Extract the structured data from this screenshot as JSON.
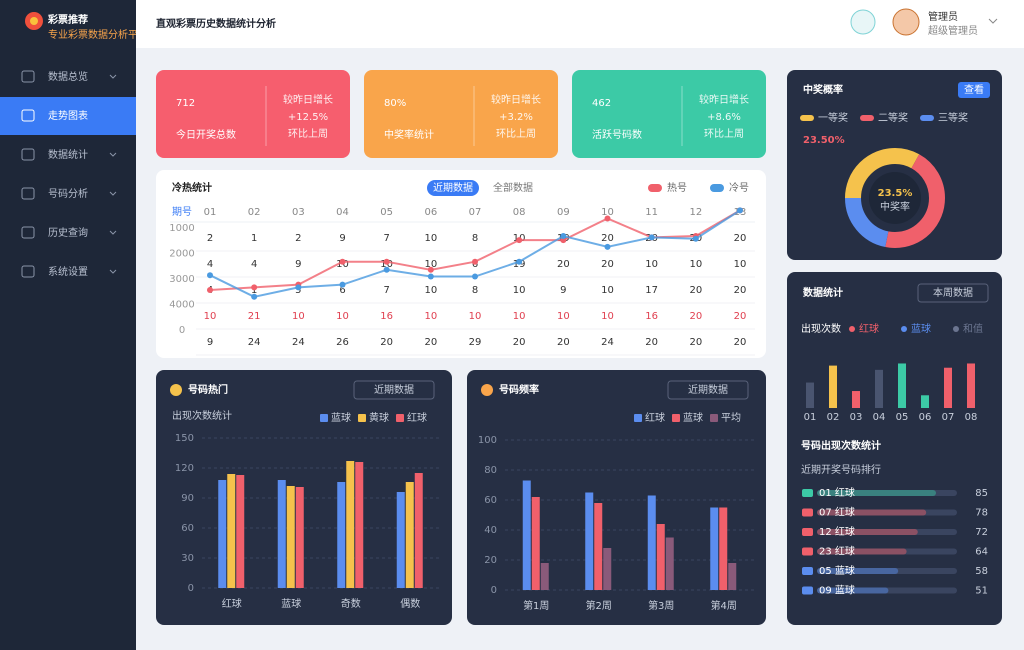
{
  "header": {
    "logo": "彩票推荐",
    "logo_sub": "专业彩票数据分析平台",
    "title": "直观彩票历史数据统计分析",
    "user_name": "管理员",
    "user_role": "超级管理员"
  },
  "sidebar": {
    "items": [
      "数据总览",
      "走势图表",
      "数据统计",
      "号码分析",
      "历史查询",
      "系统设置"
    ],
    "active": 1
  },
  "kpis": [
    {
      "value": "712",
      "label": "今日开奖总数",
      "lines": [
        "较昨日增长",
        "+12.5%",
        "环比上周"
      ],
      "color": "#f65e6e"
    },
    {
      "value": "80%",
      "label": "中奖率统计",
      "lines": [
        "较昨日增长",
        "+3.2%",
        "环比上周"
      ],
      "color": "#f9a54b"
    },
    {
      "value": "462",
      "label": "活跃号码数",
      "lines": [
        "较昨日增长",
        "+8.6%",
        "环比上周"
      ],
      "color": "#3ccaa6"
    }
  ],
  "trend": {
    "title": "冷热统计",
    "tabs": [
      "近期数据",
      "全部数据"
    ],
    "active_tab": 0,
    "columns": [
      "期号",
      "01",
      "02",
      "03",
      "04",
      "05",
      "06",
      "07",
      "08",
      "09",
      "10",
      "11",
      "12",
      "13"
    ],
    "row_labels": [
      "1000",
      "2000",
      "3000",
      "4000",
      "0"
    ],
    "rows": [
      [
        2,
        1,
        2,
        9,
        7,
        10,
        8,
        10,
        19,
        20,
        20,
        20,
        20
      ],
      [
        4,
        4,
        9,
        10,
        10,
        10,
        6,
        19,
        20,
        20,
        10,
        10,
        10
      ],
      [
        4,
        1,
        5,
        6,
        7,
        10,
        8,
        10,
        9,
        10,
        17,
        20,
        20
      ],
      [
        10,
        21,
        10,
        10,
        16,
        10,
        10,
        10,
        10,
        10,
        16,
        20,
        20
      ],
      [
        9,
        24,
        24,
        26,
        20,
        20,
        29,
        20,
        20,
        24,
        20,
        20,
        20
      ]
    ],
    "highlight_row": 3,
    "ylim": [
      0,
      100
    ],
    "series": [
      {
        "name": "热号",
        "color": "#f0606b",
        "values": [
          37,
          39,
          41,
          58,
          58,
          52,
          58,
          74,
          74,
          90,
          76,
          77,
          96
        ]
      },
      {
        "name": "冷号",
        "color": "#4a9ae0",
        "values": [
          48,
          32,
          39,
          41,
          52,
          47,
          47,
          58,
          77,
          69,
          76,
          75,
          96
        ]
      }
    ]
  },
  "prize": {
    "title": "中奖概率",
    "button": "查看",
    "summary": "23.50%",
    "center_value": "23.5%",
    "center_label": "中奖率",
    "segments": [
      {
        "name": "一等奖",
        "value": 33,
        "color": "#f5c24c"
      },
      {
        "name": "二等奖",
        "value": 45,
        "color": "#f0606b"
      },
      {
        "name": "三等奖",
        "value": 22,
        "color": "#5b8def"
      }
    ]
  },
  "stats": {
    "title": "数据统计",
    "filter": "本周数据",
    "legend_title": "出现次数",
    "legend": [
      {
        "label": "红球",
        "color": "#f0606b"
      },
      {
        "label": "蓝球",
        "color": "#5b8def"
      },
      {
        "label": "和值",
        "color": "#6b7590"
      }
    ],
    "categories": [
      "01",
      "02",
      "03",
      "04",
      "05",
      "06",
      "07",
      "08"
    ],
    "values": [
      12,
      20,
      8,
      18,
      21,
      6,
      19,
      21
    ],
    "colors": [
      "#4a5570",
      "#f5c24c",
      "#f0606b",
      "#4a5570",
      "#3ccaa6",
      "#3ccaa6",
      "#f0606b",
      "#f0606b"
    ],
    "ylim": [
      0,
      25
    ],
    "section_title": "号码出现次数统计",
    "list_title": "近期开奖号码排行",
    "list_max": 100,
    "list": [
      {
        "label": "01 红球",
        "value": 85,
        "color": "#3ccaa6"
      },
      {
        "label": "07 红球",
        "value": 78,
        "color": "#f0606b"
      },
      {
        "label": "12 红球",
        "value": 72,
        "color": "#f0606b"
      },
      {
        "label": "23 红球",
        "value": 64,
        "color": "#f0606b"
      },
      {
        "label": "05 蓝球",
        "value": 58,
        "color": "#5b8def"
      },
      {
        "label": "09 蓝球",
        "value": 51,
        "color": "#5b8def"
      }
    ]
  },
  "hot_numbers": {
    "title": "号码热门",
    "filter": "近期数据",
    "subtitle": "出现次数统计",
    "categories": [
      "红球",
      "蓝球",
      "奇数",
      "偶数"
    ],
    "ylim": [
      0,
      150
    ],
    "yticks": [
      0,
      30,
      60,
      90,
      120,
      150
    ],
    "series": [
      {
        "name": "蓝球",
        "color": "#5b8def",
        "values": [
          108,
          108,
          106,
          96
        ]
      },
      {
        "name": "黄球",
        "color": "#f5c24c",
        "values": [
          114,
          102,
          127,
          106
        ]
      },
      {
        "name": "红球",
        "color": "#f0606b",
        "values": [
          113,
          101,
          126,
          115
        ]
      }
    ]
  },
  "frequency": {
    "title": "号码频率",
    "filter": "近期数据",
    "categories": [
      "第1周",
      "第2周",
      "第3周",
      "第4周"
    ],
    "ylim": [
      0,
      100
    ],
    "yticks": [
      0,
      20,
      40,
      60,
      80,
      100
    ],
    "series": [
      {
        "name": "红球",
        "color": "#5b8def",
        "values": [
          73,
          65,
          63,
          55
        ]
      },
      {
        "name": "蓝球",
        "color": "#f0606b",
        "values": [
          62,
          58,
          44,
          55
        ]
      },
      {
        "name": "平均",
        "color": "#8a5a7a",
        "values": [
          18,
          28,
          35,
          18
        ]
      }
    ]
  }
}
